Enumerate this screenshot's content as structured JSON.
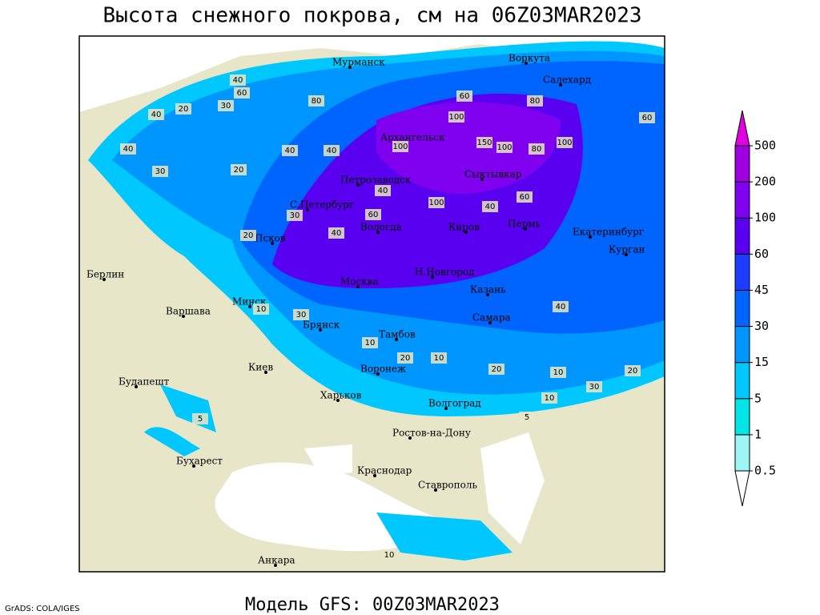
{
  "title": "Высота снежного покрова, см на 06Z03MAR2023",
  "footer": "Модель GFS: 00Z03MAR2023",
  "credit": "GrADS: COLA/IGES",
  "cities": [
    "Мурманск",
    "Воркута",
    "Салехард",
    "Архангельск",
    "Петрозаводск",
    "Сыктывкар",
    "С.Петербург",
    "Вологда",
    "Киров",
    "Пермь",
    "Екатеринбург",
    "Курган",
    "Псков",
    "Берлин",
    "Н.Новгород",
    "Москва",
    "Казань",
    "Минск",
    "Варшава",
    "Самара",
    "Брянск",
    "Тамбов",
    "Киев",
    "Воронеж",
    "Будапешт",
    "Харьков",
    "Волгоград",
    "Ростов-на-Дону",
    "Бухарест",
    "Краснодар",
    "Ставрополь",
    "Анкара"
  ],
  "contour_labels": [
    40,
    60,
    40,
    20,
    30,
    40,
    20,
    30,
    40,
    80,
    100,
    100,
    150,
    100,
    80,
    100,
    60,
    100,
    60,
    40,
    40,
    60,
    40,
    30,
    40,
    30,
    20,
    10,
    10,
    20,
    10,
    20,
    30,
    10,
    20,
    10,
    5,
    5,
    10,
    40,
    60,
    80
  ],
  "colorbar": {
    "levels": [
      0.5,
      1,
      5,
      15,
      30,
      45,
      60,
      100,
      200,
      500
    ],
    "colors": [
      "#ffffff",
      "#9ef5f5",
      "#00e6e6",
      "#00c8ff",
      "#0096ff",
      "#0064ff",
      "#1e3cff",
      "#5a00f0",
      "#8000f0",
      "#a000e0",
      "#e000e0"
    ]
  }
}
